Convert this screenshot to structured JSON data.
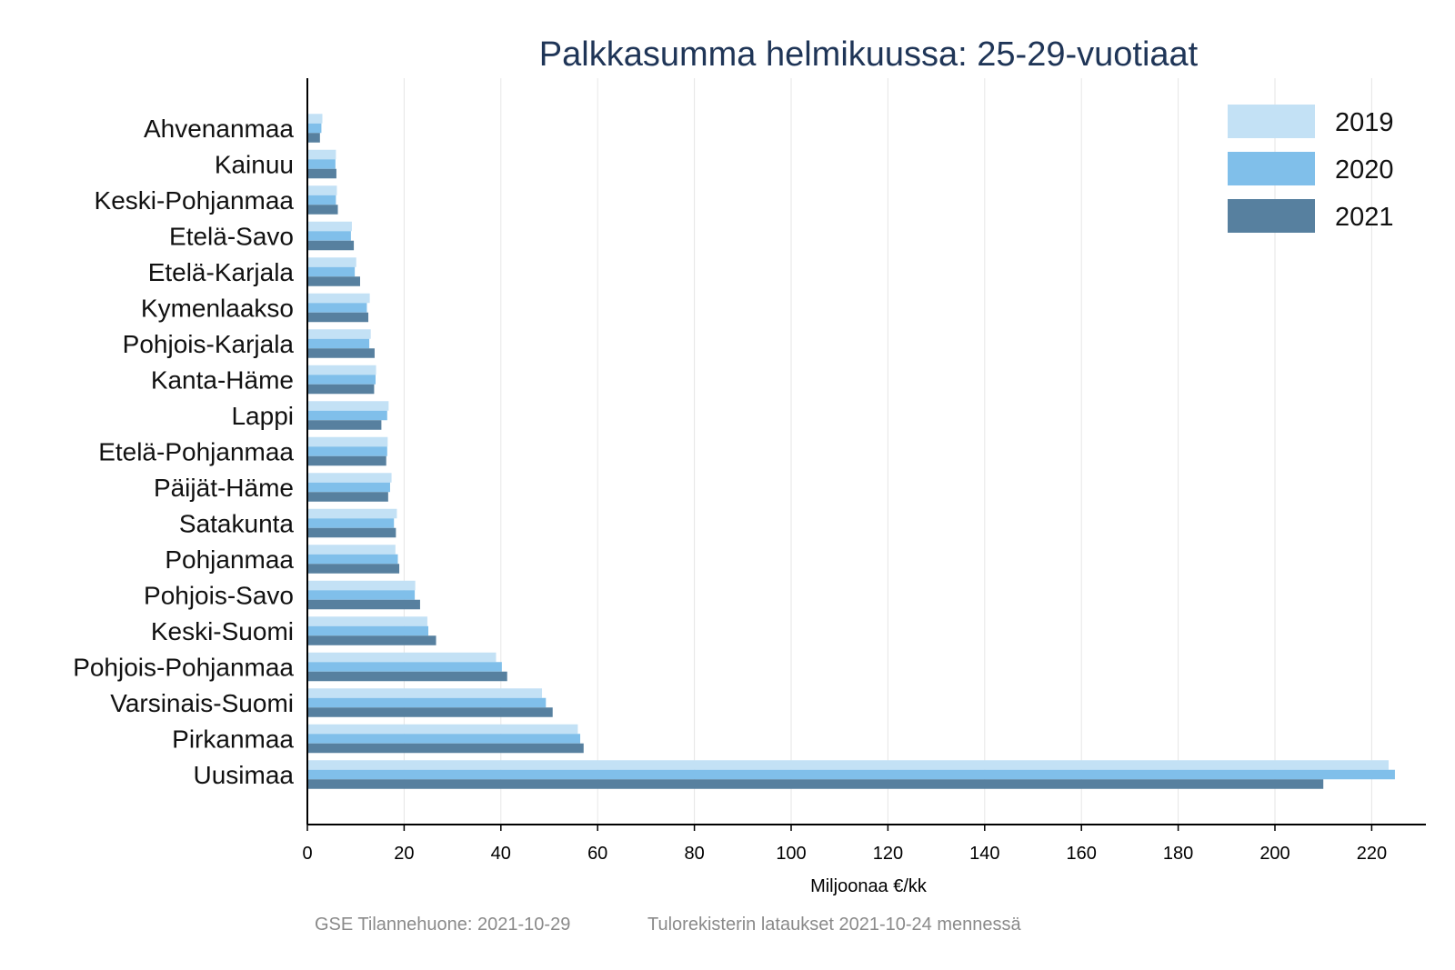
{
  "chart_data": {
    "type": "bar",
    "orientation": "horizontal",
    "title": "Palkkasumma helmikuussa: 25-29-vuotiaat",
    "xlabel": "Miljoonaa €/kk",
    "ylabel": "",
    "xlim": [
      0,
      232
    ],
    "xticks": [
      0,
      20,
      40,
      60,
      80,
      100,
      120,
      140,
      160,
      180,
      200,
      220
    ],
    "grid": "vertical",
    "legend_position": "top-right",
    "categories": [
      "Ahvenanmaa",
      "Kainuu",
      "Keski-Pohjanmaa",
      "Etelä-Savo",
      "Etelä-Karjala",
      "Kymenlaakso",
      "Pohjois-Karjala",
      "Kanta-Häme",
      "Lappi",
      "Etelä-Pohjanmaa",
      "Päijät-Häme",
      "Satakunta",
      "Pohjanmaa",
      "Pohjois-Savo",
      "Keski-Suomi",
      "Pohjois-Pohjanmaa",
      "Varsinais-Suomi",
      "Pirkanmaa",
      "Uusimaa"
    ],
    "series": [
      {
        "name": "2019",
        "color": "#c3e1f5",
        "values": [
          3.1,
          5.9,
          6.1,
          9.2,
          10.1,
          12.9,
          13.1,
          14.2,
          16.8,
          16.6,
          17.4,
          18.5,
          18.2,
          22.3,
          24.8,
          39.0,
          48.5,
          55.9,
          223.5
        ]
      },
      {
        "name": "2020",
        "color": "#80bfea",
        "values": [
          2.9,
          5.8,
          5.9,
          9.0,
          9.8,
          12.3,
          12.8,
          14.1,
          16.5,
          16.5,
          17.1,
          17.9,
          18.7,
          22.2,
          25.0,
          40.2,
          49.3,
          56.4,
          224.8
        ]
      },
      {
        "name": "2021",
        "color": "#57809f",
        "values": [
          2.6,
          6.0,
          6.3,
          9.6,
          10.9,
          12.6,
          13.9,
          13.8,
          15.3,
          16.3,
          16.7,
          18.3,
          19.0,
          23.3,
          26.6,
          41.3,
          50.7,
          57.1,
          210.0
        ]
      }
    ]
  },
  "footer": {
    "source": "GSE Tilannehuone: 2021-10-29",
    "note": "Tulorekisterin lataukset 2021-10-24 mennessä"
  }
}
